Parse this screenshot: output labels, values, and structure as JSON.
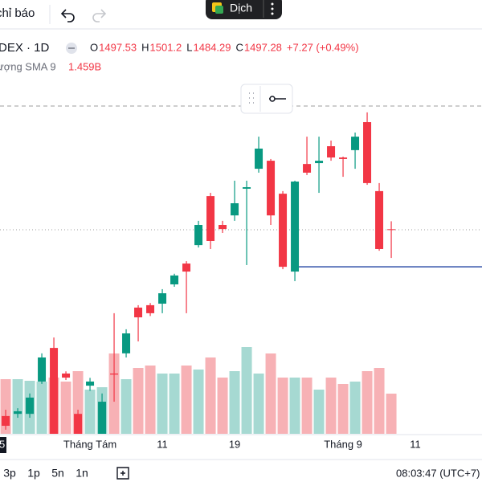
{
  "toolbar": {
    "indicators": "chỉ báo",
    "translate": "Dịch"
  },
  "legend": {
    "symbol": "DEX · 1D",
    "ohlc_labels": [
      "O",
      "H",
      "L",
      "C"
    ],
    "change": "+7.27 (+0.49%)",
    "volume_label": "ượng SMA 9",
    "volume_sma": "1.459B"
  },
  "time_cursor": "5",
  "chart_data": {
    "type": "candlestick",
    "open": [
      1411.4,
      1412.4,
      1412.4,
      1427.3,
      1442.8,
      1431.0,
      1412.4,
      1425.4,
      1403.2,
      1431.0,
      1440.3,
      1461.4,
      1462.5,
      1463.2,
      1472.1,
      1481.7,
      1490.2,
      1512.8,
      1499.5,
      1503.9,
      1516.2,
      1525.4,
      1529.1,
      1513.9,
      1478.0,
      1527.6,
      1528.0,
      1535.8,
      1530.6,
      1534.0,
      1546.9,
      1515.1,
      1497.53
    ],
    "high": [
      1414.3,
      1415.0,
      1421.8,
      1440.3,
      1447.6,
      1432.0,
      1414.3,
      1429.0,
      1421.8,
      1458.8,
      1451.4,
      1462.5,
      1463.5,
      1469.9,
      1477.0,
      1482.8,
      1501.4,
      1514.3,
      1501.4,
      1519.9,
      1519.9,
      1540.2,
      1529.9,
      1515.1,
      1519.9,
      1540.2,
      1540.2,
      1538.4,
      1531.0,
      1542.1,
      1551.4,
      1518.8,
      1501.2
    ],
    "low": [
      1405.1,
      1410.6,
      1410.6,
      1426.2,
      1403.2,
      1428.0,
      1403.2,
      1423.0,
      1403.2,
      1418.0,
      1438.4,
      1445.8,
      1457.5,
      1458.8,
      1471.0,
      1458.8,
      1489.1,
      1488.4,
      1495.8,
      1501.4,
      1481.0,
      1523.6,
      1499.5,
      1479.1,
      1473.6,
      1522.5,
      1514.3,
      1529.1,
      1521.7,
      1525.4,
      1518.0,
      1487.6,
      1484.29
    ],
    "close": [
      1406.9,
      1413.6,
      1419.9,
      1438.4,
      1403.2,
      1429.1,
      1403.2,
      1427.3,
      1418.0,
      1430.5,
      1449.5,
      1456.9,
      1458.8,
      1468.0,
      1476.2,
      1478.0,
      1499.5,
      1492.1,
      1497.6,
      1509.5,
      1516.9,
      1534.7,
      1503.9,
      1480.2,
      1519.5,
      1523.6,
      1529.1,
      1530.6,
      1529.9,
      1540.2,
      1518.8,
      1488.4,
      1497.28
    ],
    "volume": [
      1.36,
      1.36,
      1.32,
      1.3,
      1.4,
      1.3,
      1.56,
      1.1,
      1.16,
      2.0,
      1.36,
      1.64,
      1.7,
      1.5,
      1.5,
      1.7,
      1.6,
      1.9,
      1.4,
      1.56,
      2.16,
      1.5,
      2.0,
      1.4,
      1.4,
      1.4,
      1.1,
      1.4,
      1.24,
      1.3,
      1.56,
      1.64,
      1.0
    ],
    "xlim": [
      -0.47,
      39.53
    ],
    "ylim": [
      1400,
      1570
    ],
    "volume_lim": [
      0,
      2.5
    ],
    "xticks": [
      {
        "value": 7,
        "label": "Tháng Tám"
      },
      {
        "value": 13,
        "label": "11"
      },
      {
        "value": 19,
        "label": "19"
      },
      {
        "value": 28,
        "label": "Tháng 9"
      },
      {
        "value": 34,
        "label": "11"
      }
    ],
    "lines": [
      {
        "value": 1554.3,
        "style": "dashed",
        "color": "#9e9e9e"
      },
      {
        "value": 1480.2,
        "from": 24,
        "style": "solid",
        "color": "#2f4fa8"
      }
    ],
    "up_color": "#089981",
    "down_color": "#f23645",
    "up_volume_color": "#a6d9d2",
    "down_volume_color": "#f7b1b5"
  },
  "bottom_bar": {
    "ranges": [
      "3p",
      "1p",
      "5n",
      "1n"
    ],
    "clock": "08:03:47 (UTC+7)"
  }
}
